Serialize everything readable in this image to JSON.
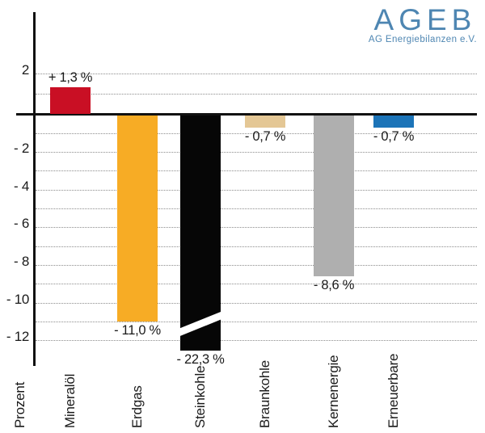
{
  "logo": {
    "title": "AGEB",
    "subtitle": "AG Energiebilanzen e.V.",
    "color": "#4E86B2"
  },
  "y_axis": {
    "title": "Prozent",
    "tick_labels": [
      "2",
      "- 2",
      "- 4",
      "- 6",
      "- 8",
      "- 10",
      "- 12"
    ]
  },
  "chart_data": {
    "type": "bar",
    "title": "",
    "xlabel": "",
    "ylabel": "Prozent",
    "categories": [
      "Mineralöl",
      "Erdgas",
      "Steinkohle",
      "Braunkohle",
      "Kernenergie",
      "Erneuerbare"
    ],
    "values": [
      1.3,
      -11.0,
      -22.3,
      -0.7,
      -8.6,
      -0.7
    ],
    "value_labels": [
      "+ 1,3 %",
      "- 11,0 %",
      "- 22,3 %",
      "- 0,7 %",
      "- 8,6 %",
      "- 0,7 %"
    ],
    "bar_colors": [
      "#C90F24",
      "#F7AC25",
      "#060606",
      "#E4C795",
      "#AFAFAF",
      "#1C74B8"
    ],
    "ylim": [
      -12.6,
      2.9
    ],
    "yticks": [
      2,
      -2,
      -4,
      -6,
      -8,
      -10,
      -12
    ],
    "ytick_labels": [
      "2",
      "- 2",
      "- 4",
      "- 6",
      "- 8",
      "- 10",
      "- 12"
    ],
    "grid": "horizontal dotted lines every 1 unit, none at 0",
    "legend": "none",
    "axis_break": {
      "category": "Steinkohle",
      "category_index": 2,
      "true_value": -22.3,
      "drawn_value": -12.55,
      "style": "white diagonal slash through bar"
    }
  },
  "colors": {
    "grid": "#8C8C8C",
    "axis": "#111111",
    "text": "#1A1A1A"
  }
}
